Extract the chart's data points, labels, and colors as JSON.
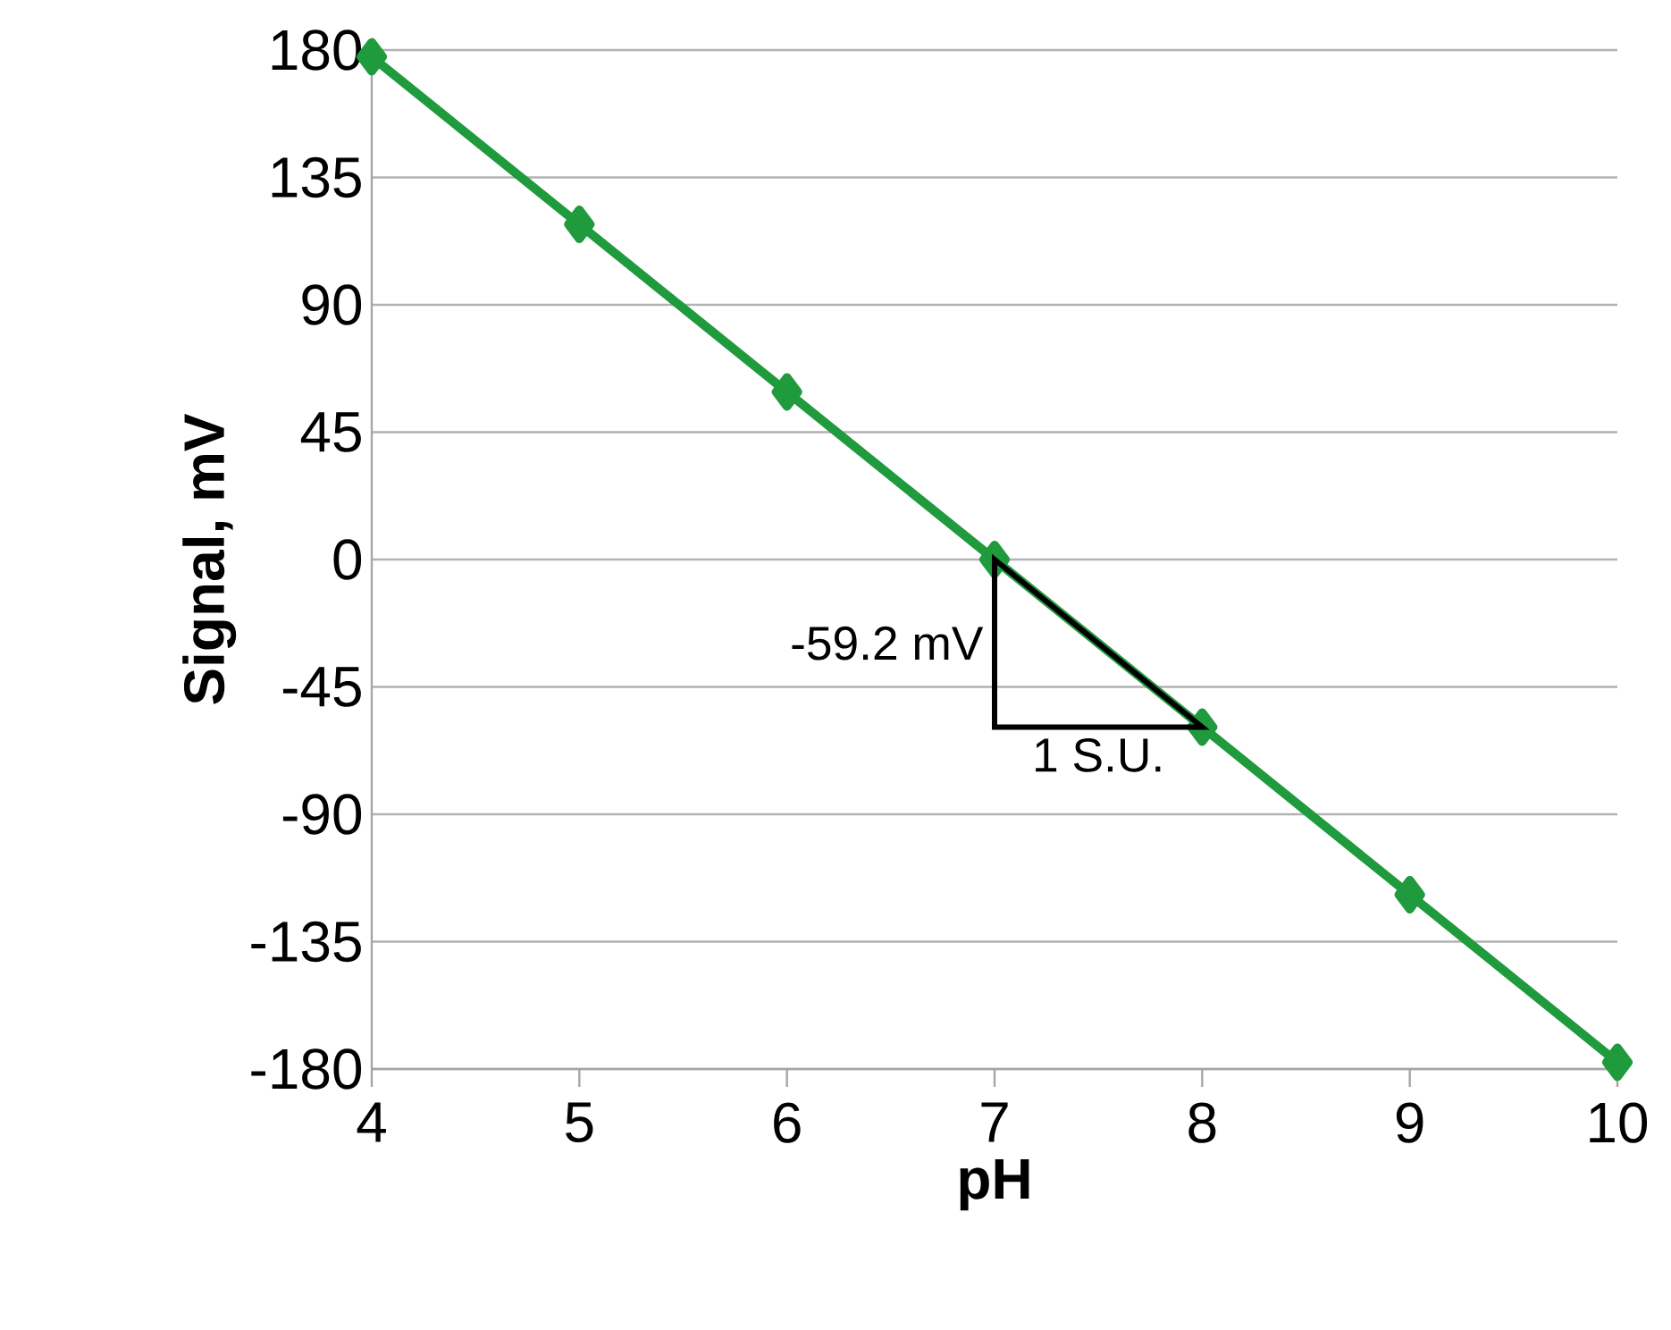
{
  "chart_data": {
    "type": "line",
    "xlabel": "pH",
    "ylabel": "Signal, mV",
    "x": [
      4,
      5,
      6,
      7,
      8,
      9,
      10
    ],
    "series": [
      {
        "color": "#1f9a3c",
        "values": [
          177.6,
          118.4,
          59.2,
          0,
          -59.2,
          -118.4,
          -177.6
        ]
      }
    ],
    "xlim": [
      4,
      10
    ],
    "xticks": [
      4,
      5,
      6,
      7,
      8,
      9,
      10
    ],
    "ylim": [
      -180,
      180
    ],
    "yticks": [
      -180,
      -135,
      -90,
      -45,
      0,
      45,
      90,
      135,
      180
    ],
    "grid": "y",
    "marker": "diamond",
    "line_style": "solid",
    "annotations": [
      "-59.2 mV",
      "1 S.U."
    ]
  }
}
